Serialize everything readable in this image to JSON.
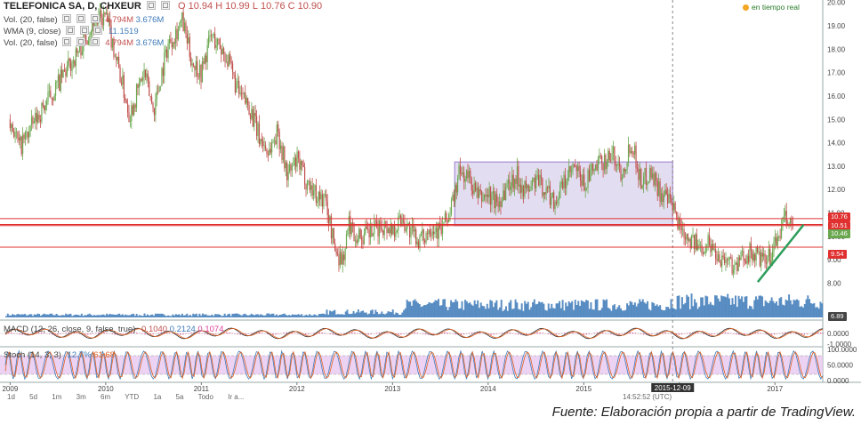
{
  "header": {
    "symbol_line": "TELEFONICA SA, D, CHXEUR",
    "ohlc": {
      "o_label": "O",
      "o": "10.94",
      "h_label": "H",
      "h": "10.99",
      "l_label": "L",
      "l": "10.76",
      "c_label": "C",
      "c": "10.90"
    },
    "vol_label": "Vol. (20, false)",
    "vol_value1": "4.794M",
    "vol_value2": "3.676M",
    "wma_label": "WMA (9, close)",
    "wma_value": "11.1519",
    "vol2_label": "Vol. (20, false)",
    "vol2_value1": "4.794M",
    "vol2_value2": "3.676M",
    "realtime_label": "en tiempo real"
  },
  "indicators": {
    "macd_label": "MACD (12, 26, close, 9, false, true)",
    "macd_value1": "0.1040",
    "macd_value2": "0.2124",
    "macd_value3": "0.1074",
    "stoch_label": "Stoch (14, 3, 3)",
    "stoch_value1": "12.7%",
    "stoch_value2": "61.68"
  },
  "price_pills": {
    "p1": "10.76",
    "p2": "10.51",
    "p3": "10.46",
    "p4": "9.54",
    "p5": "6.89"
  },
  "macd_axis": [
    "0.0000",
    "-1.0000"
  ],
  "stoch_axis": [
    "100.0000",
    "50.0000",
    "0.0000"
  ],
  "crosshair_label": "2015-12-09",
  "timeframe_buttons": [
    "1d",
    "5d",
    "1m",
    "3m",
    "6m",
    "YTD",
    "1a",
    "5a",
    "Todo",
    "Ir a..."
  ],
  "bottom_right_label": "14:52:52 (UTC)",
  "caption": "Fuente: Elaboración propia a partir de TradingView.",
  "colors": {
    "candle_up": "#6aa84f",
    "candle_down": "#c0504d",
    "volume": "#3d7ab8",
    "resistance_line": "#e03030",
    "channel_fill": "#d9d2ec",
    "channel_stroke": "#9a7bd1",
    "trend_line": "#2e9e5b",
    "stoch_band": "#e8c8f0"
  },
  "chart_data": {
    "type": "candlestick",
    "title": "TELEFONICA SA, D, CHXEUR",
    "x_ticks": [
      "2009",
      "2010",
      "2011",
      "2012",
      "2013",
      "2014",
      "2015",
      "2016",
      "2017"
    ],
    "y_ticks": [
      8,
      9,
      10,
      11,
      12,
      13,
      14,
      15,
      16,
      17,
      18,
      19,
      20
    ],
    "ylim": [
      6.5,
      20.1
    ],
    "grid": false,
    "price_path": {
      "x": [
        2009.0,
        2009.1,
        2009.3,
        2009.5,
        2009.7,
        2009.85,
        2010.0,
        2010.1,
        2010.25,
        2010.4,
        2010.5,
        2010.65,
        2010.8,
        2010.9,
        2011.0,
        2011.1,
        2011.25,
        2011.4,
        2011.5,
        2011.6,
        2011.7,
        2011.8,
        2011.9,
        2012.0,
        2012.1,
        2012.2,
        2012.3,
        2012.4,
        2012.48,
        2012.55,
        2012.6,
        2012.7,
        2012.8,
        2012.9,
        2013.0,
        2013.1,
        2013.2,
        2013.3,
        2013.4,
        2013.5,
        2013.6,
        2013.7,
        2013.8,
        2013.9,
        2014.0,
        2014.1,
        2014.2,
        2014.3,
        2014.4,
        2014.5,
        2014.6,
        2014.7,
        2014.8,
        2014.9,
        2015.0,
        2015.1,
        2015.2,
        2015.3,
        2015.4,
        2015.5,
        2015.6,
        2015.7,
        2015.8,
        2015.93,
        2016.0,
        2016.1,
        2016.2,
        2016.3,
        2016.4,
        2016.5,
        2016.6,
        2016.7,
        2016.8,
        2016.9,
        2017.0,
        2017.1,
        2017.2
      ],
      "y": [
        15.0,
        13.8,
        15.2,
        16.5,
        17.8,
        19.0,
        19.4,
        17.8,
        15.2,
        17.0,
        15.4,
        18.2,
        19.2,
        17.5,
        17.0,
        18.6,
        17.8,
        16.0,
        15.6,
        14.3,
        13.6,
        14.5,
        12.6,
        13.2,
        12.4,
        11.8,
        11.5,
        9.4,
        9.0,
        10.6,
        10.1,
        10.0,
        10.2,
        10.5,
        10.3,
        10.8,
        10.1,
        9.8,
        10.5,
        10.2,
        11.0,
        12.7,
        12.5,
        11.6,
        11.8,
        11.4,
        12.2,
        12.6,
        11.9,
        12.4,
        12.0,
        11.5,
        12.3,
        12.9,
        12.2,
        12.8,
        13.2,
        13.5,
        12.7,
        14.1,
        12.3,
        12.8,
        11.9,
        11.2,
        10.5,
        10.0,
        9.5,
        9.8,
        9.2,
        9.0,
        8.7,
        9.3,
        9.2,
        8.8,
        9.6,
        10.7,
        10.5
      ]
    },
    "horizontal_levels": [
      10.76,
      10.51,
      10.46,
      9.54
    ],
    "channel": {
      "x_start": 2013.65,
      "x_end": 2015.93,
      "y_low": 10.46,
      "y_high": 13.18
    },
    "trend_line": {
      "x": [
        2016.82,
        2017.3
      ],
      "y": [
        8.05,
        10.5
      ]
    },
    "crosshair_x": 2015.93,
    "volume_axis_label": "6.89",
    "last_price": 10.9
  }
}
